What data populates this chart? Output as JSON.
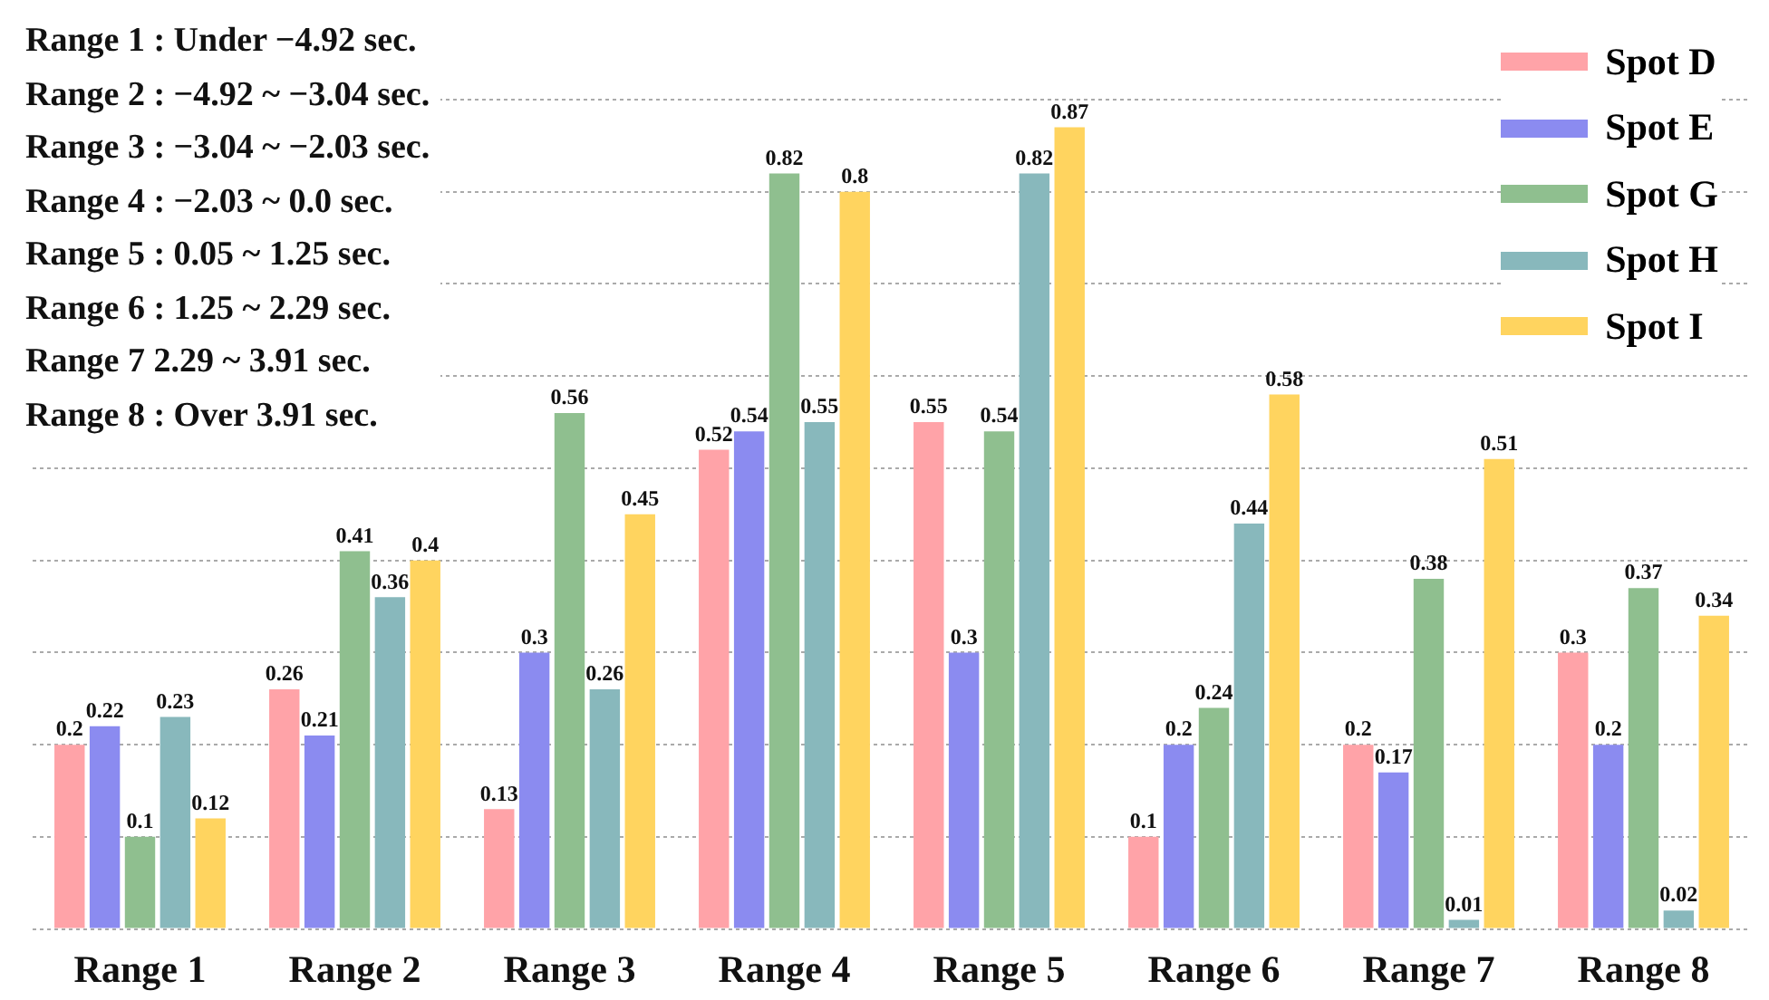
{
  "chart_data": {
    "type": "bar",
    "categories": [
      "Range 1",
      "Range 2",
      "Range 3",
      "Range 4",
      "Range 5",
      "Range 6",
      "Range 7",
      "Range 8"
    ],
    "series": [
      {
        "name": "Spot D",
        "color": "#ffa3a8",
        "values": [
          0.2,
          0.26,
          0.13,
          0.52,
          0.55,
          0.1,
          0.2,
          0.3
        ]
      },
      {
        "name": "Spot E",
        "color": "#8b8bf0",
        "values": [
          0.22,
          0.21,
          0.3,
          0.54,
          0.3,
          0.2,
          0.17,
          0.2
        ]
      },
      {
        "name": "Spot G",
        "color": "#8fbf8f",
        "values": [
          0.1,
          0.41,
          0.56,
          0.82,
          0.54,
          0.24,
          0.38,
          0.37
        ]
      },
      {
        "name": "Spot H",
        "color": "#88b8bc",
        "values": [
          0.23,
          0.36,
          0.26,
          0.55,
          0.82,
          0.44,
          0.01,
          0.02
        ]
      },
      {
        "name": "Spot I",
        "color": "#ffd45f",
        "values": [
          0.12,
          0.4,
          0.45,
          0.8,
          0.87,
          0.58,
          0.51,
          0.34
        ]
      }
    ],
    "ylim": [
      0,
      0.9
    ],
    "yticks": [
      0,
      {
        "value": 0.1,
        "label": null
      },
      {
        "value": 0.2,
        "label": null
      },
      {
        "value": 0.3,
        "label": null
      },
      {
        "value": 0.4,
        "label": null
      },
      {
        "value": 0.5,
        "label": null
      },
      {
        "value": 0.6,
        "label": null
      },
      {
        "value": 0.7,
        "label": null
      },
      {
        "value": 0.8,
        "label": null
      },
      {
        "value": 0.9,
        "label": null
      }
    ],
    "tick_labels": "x",
    "grid": "y",
    "legend": "top right",
    "data_labels": true,
    "annotations": [
      "Range 1 : Under −4.92 sec.",
      "Range 2 : −4.92 ~ −3.04 sec.",
      "Range 3 : −3.04 ~ −2.03 sec.",
      "Range 4 : −2.03 ~ 0.0 sec.",
      "Range 5 : 0.05 ~ 1.25 sec.",
      "Range 6 : 1.25 ~ 2.29 sec.",
      "Range 7 2.29 ~ 3.91 sec.",
      "Range 8 : Over 3.91 sec."
    ]
  }
}
